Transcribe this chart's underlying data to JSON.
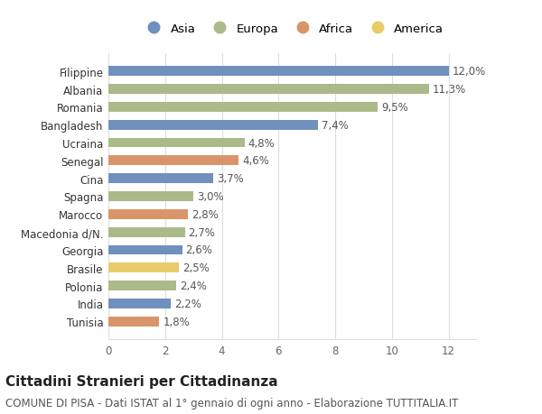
{
  "categories": [
    "Tunisia",
    "India",
    "Polonia",
    "Brasile",
    "Georgia",
    "Macedonia d/N.",
    "Marocco",
    "Spagna",
    "Cina",
    "Senegal",
    "Ucraina",
    "Bangladesh",
    "Romania",
    "Albania",
    "Filippine"
  ],
  "values": [
    1.8,
    2.2,
    2.4,
    2.5,
    2.6,
    2.7,
    2.8,
    3.0,
    3.7,
    4.6,
    4.8,
    7.4,
    9.5,
    11.3,
    12.0
  ],
  "labels": [
    "1,8%",
    "2,2%",
    "2,4%",
    "2,5%",
    "2,6%",
    "2,7%",
    "2,8%",
    "3,0%",
    "3,7%",
    "4,6%",
    "4,8%",
    "7,4%",
    "9,5%",
    "11,3%",
    "12,0%"
  ],
  "continents": [
    "Africa",
    "Asia",
    "Europa",
    "America",
    "Asia",
    "Europa",
    "Africa",
    "Europa",
    "Asia",
    "Africa",
    "Europa",
    "Asia",
    "Europa",
    "Europa",
    "Asia"
  ],
  "colors": {
    "Asia": "#7090be",
    "Europa": "#aaba88",
    "Africa": "#d9956a",
    "America": "#e8cc6a"
  },
  "legend_order": [
    "Asia",
    "Europa",
    "Africa",
    "America"
  ],
  "xlim": [
    0,
    13
  ],
  "xticks": [
    0,
    2,
    4,
    6,
    8,
    10,
    12
  ],
  "title": "Cittadini Stranieri per Cittadinanza",
  "subtitle": "COMUNE DI PISA - Dati ISTAT al 1° gennaio di ogni anno - Elaborazione TUTTITALIA.IT",
  "bg_color": "#ffffff",
  "grid_color": "#dddddd",
  "bar_height": 0.55,
  "label_fontsize": 8.5,
  "tick_fontsize": 8.5,
  "title_fontsize": 11,
  "subtitle_fontsize": 8.5
}
